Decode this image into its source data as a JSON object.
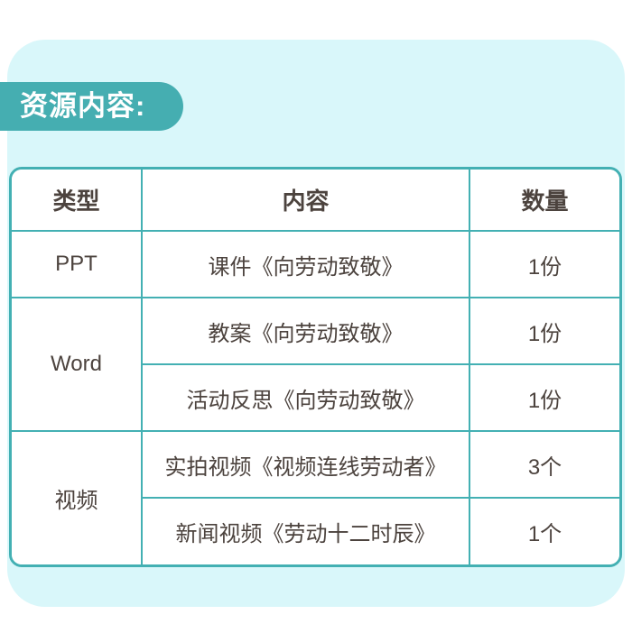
{
  "title": "资源内容:",
  "table": {
    "headers": [
      "类型",
      "内容",
      "数量"
    ],
    "rows": [
      {
        "type": "PPT",
        "content": "课件《向劳动致敬》",
        "qty": "1份"
      },
      {
        "type": "Word",
        "content": "教案《向劳动致敬》",
        "qty": "1份"
      },
      {
        "content": "活动反思《向劳动致敬》",
        "qty": "1份"
      },
      {
        "type": "视频",
        "content": "实拍视频《视频连线劳动者》",
        "qty": "3个"
      },
      {
        "content": "新闻视频《劳动十二时辰》",
        "qty": "1个"
      }
    ]
  },
  "colors": {
    "teal": "#45aeb1",
    "border-teal": "#43b0b3",
    "panel-cyan": "#d9f7fa",
    "text-dark": "#4c433e",
    "cell-white": "#ffffff"
  }
}
